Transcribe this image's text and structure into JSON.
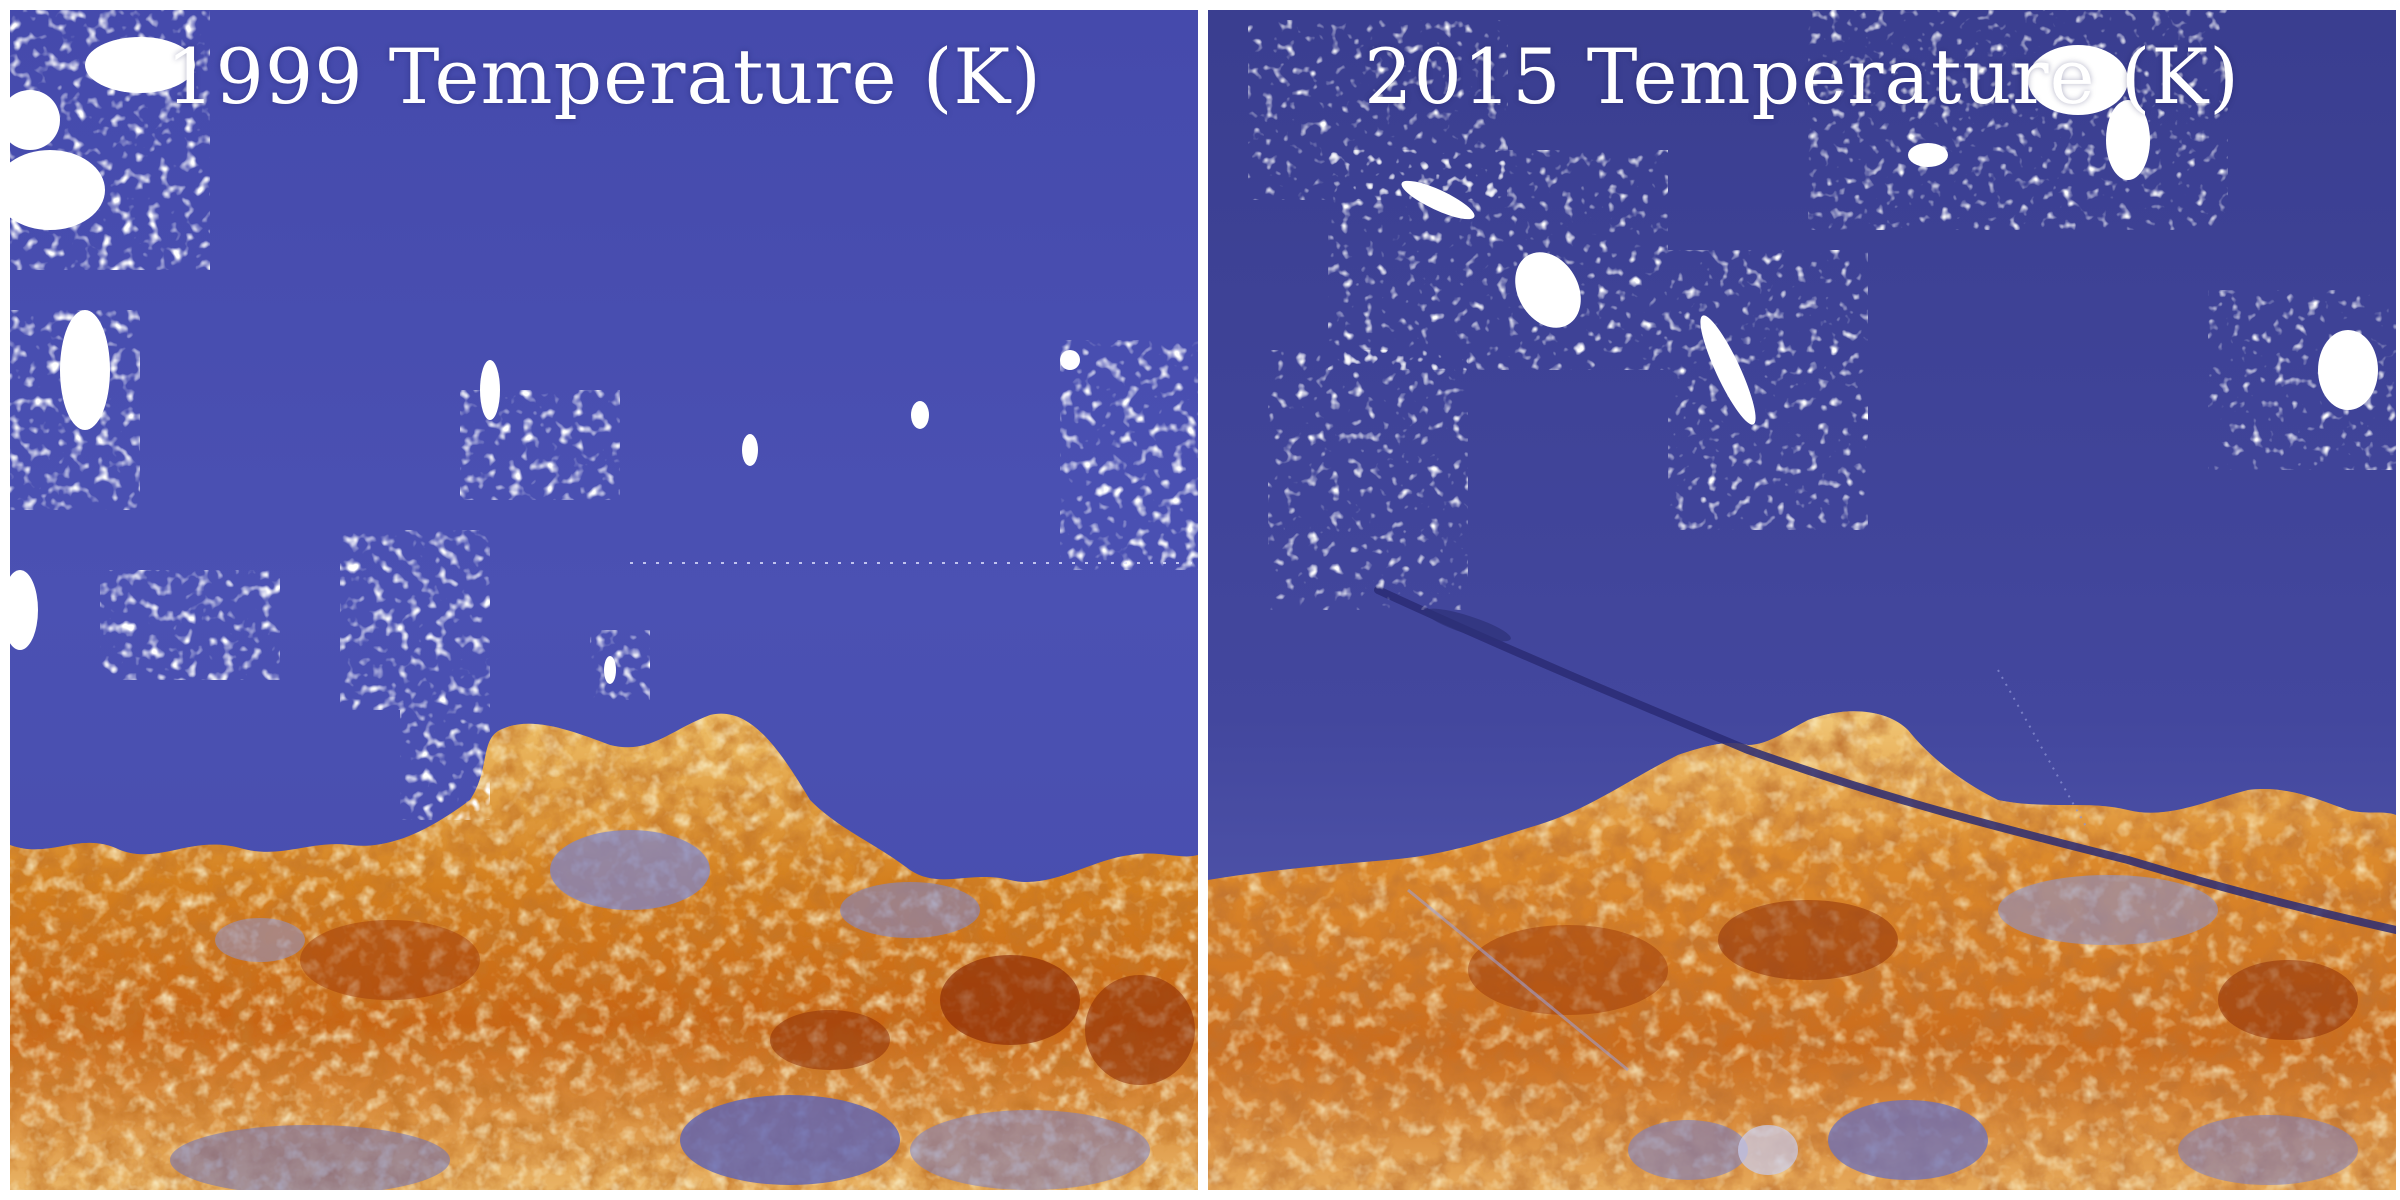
{
  "panels": [
    {
      "title": "1999 Temperature (K)"
    },
    {
      "title": "2015 Temperature (K)"
    }
  ],
  "colors": {
    "ocean_1999": "#4a4fb0",
    "ocean_2015": "#3c4096",
    "cloud": "#ffffff",
    "land_hot": "#8a2a06",
    "land_warm": "#c96a16",
    "land_mild": "#eca94b",
    "land_cool": "#f3dc95",
    "land_cold": "#8f95cf",
    "frame": "#ffffff"
  }
}
